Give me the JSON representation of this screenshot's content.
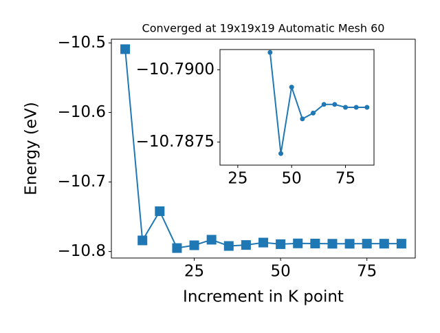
{
  "chart_data": [
    {
      "type": "line",
      "title": "Converged at 19x19x19 Automatic Mesh 60",
      "xlabel": "Increment in K point",
      "ylabel": "Energy (eV)",
      "x": [
        5,
        10,
        15,
        20,
        25,
        30,
        35,
        40,
        45,
        50,
        55,
        60,
        65,
        70,
        75,
        80,
        85
      ],
      "series": [
        {
          "color": "#1f77b4",
          "marker": "square",
          "values": [
            -10.509,
            -10.784,
            -10.742,
            -10.795,
            -10.791,
            -10.783,
            -10.792,
            -10.7906,
            -10.7871,
            -10.7894,
            -10.7883,
            -10.7885,
            -10.7888,
            -10.7888,
            -10.7887,
            -10.7887,
            -10.7887
          ]
        }
      ],
      "xlim": [
        1,
        89
      ],
      "xticks": [
        25,
        50,
        75
      ],
      "ylim": [
        -10.8093,
        -10.4947
      ],
      "yticks": [
        {
          "value": -10.8,
          "label": "−10.8"
        },
        {
          "value": -10.7,
          "label": "−10.7"
        },
        {
          "value": -10.6,
          "label": "−10.6"
        },
        {
          "value": -10.5,
          "label": "−10.5"
        }
      ]
    },
    {
      "type": "line",
      "x": [
        40,
        45,
        50,
        55,
        60,
        65,
        70,
        75,
        80,
        85
      ],
      "series": [
        {
          "color": "#1f77b4",
          "marker": "circle",
          "values": [
            -10.7906,
            -10.7871,
            -10.7894,
            -10.7883,
            -10.7885,
            -10.7888,
            -10.7888,
            -10.7887,
            -10.7887,
            -10.7887
          ]
        }
      ],
      "xlim": [
        16.75,
        88.25
      ],
      "xticks": [
        25,
        50,
        75
      ],
      "ylim": [
        -10.7867,
        -10.7907
      ],
      "yticks": [
        {
          "value": -10.7875,
          "label": "−10.7875"
        },
        {
          "value": -10.79,
          "label": "−10.7900"
        }
      ]
    }
  ]
}
